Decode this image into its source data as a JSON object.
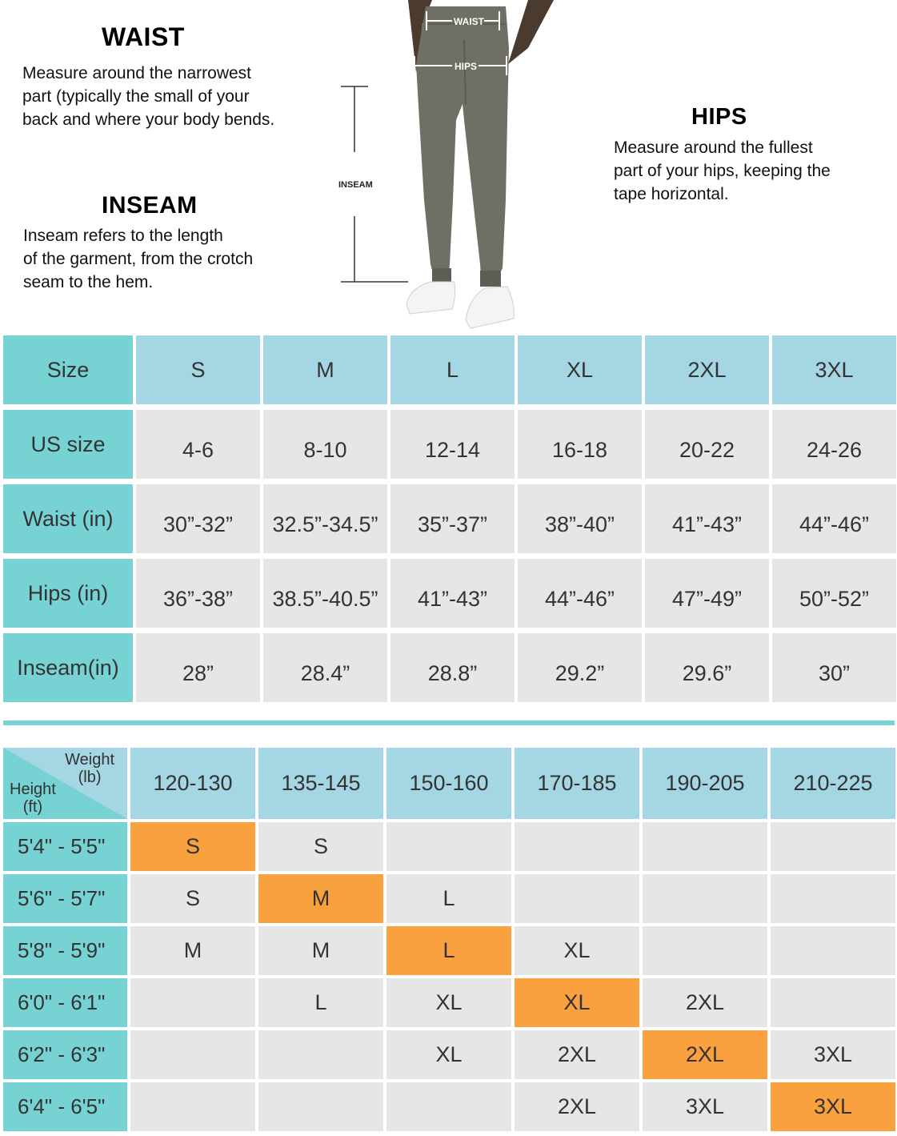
{
  "guide": {
    "waist": {
      "title": "WAIST",
      "lines": [
        "Measure around the narrowest",
        "part (typically the small of your",
        "back and where your body bends."
      ]
    },
    "inseam": {
      "title": "INSEAM",
      "lines": [
        "Inseam refers to the length",
        "of the garment, from the crotch",
        "seam to the hem."
      ]
    },
    "hips": {
      "title": "HIPS",
      "lines": [
        "Measure around the fullest",
        "part of your hips, keeping the",
        "tape horizontal."
      ]
    },
    "figure_labels": {
      "waist": "WAIST",
      "hips": "HIPS",
      "inseam": "INSEAM"
    }
  },
  "size_table": {
    "headers": [
      "Size",
      "S",
      "M",
      "L",
      "XL",
      "2XL",
      "3XL"
    ],
    "rows": [
      {
        "label": "US size",
        "values": [
          "4-6",
          "8-10",
          "12-14",
          "16-18",
          "20-22",
          "24-26"
        ]
      },
      {
        "label": "Waist (in)",
        "values": [
          "30”-32”",
          "32.5”-34.5”",
          "35”-37”",
          "38”-40”",
          "41”-43”",
          "44”-46”"
        ]
      },
      {
        "label": "Hips (in)",
        "values": [
          "36”-38”",
          "38.5”-40.5”",
          "41”-43”",
          "44”-46”",
          "47”-49”",
          "50”-52”"
        ]
      },
      {
        "label": "Inseam(in)",
        "values": [
          "28”",
          "28.4”",
          "28.8”",
          "29.2”",
          "29.6”",
          "30”"
        ]
      }
    ]
  },
  "fit_table": {
    "corner": {
      "weight": [
        "Weight",
        "(lb)"
      ],
      "height": [
        "Height",
        "(ft)"
      ]
    },
    "weights": [
      "120-130",
      "135-145",
      "150-160",
      "170-185",
      "190-205",
      "210-225"
    ],
    "rows": [
      {
        "height": "5'4\" - 5'5\"",
        "values": [
          "S",
          "S",
          "",
          "",
          "",
          ""
        ],
        "best": 0
      },
      {
        "height": "5'6\" - 5'7\"",
        "values": [
          "S",
          "M",
          "L",
          "",
          "",
          ""
        ],
        "best": 1
      },
      {
        "height": "5'8\" - 5'9\"",
        "values": [
          "M",
          "M",
          "L",
          "XL",
          "",
          ""
        ],
        "best": 2
      },
      {
        "height": "6'0\" - 6'1\"",
        "values": [
          "",
          "L",
          "XL",
          "XL",
          "2XL",
          ""
        ],
        "best": 3
      },
      {
        "height": "6'2\" - 6'3\"",
        "values": [
          "",
          "",
          "XL",
          "2XL",
          "2XL",
          "3XL"
        ],
        "best": 4
      },
      {
        "height": "6'4\" - 6'5\"",
        "values": [
          "",
          "",
          "",
          "2XL",
          "3XL",
          "3XL"
        ],
        "best": 5
      }
    ]
  },
  "colors": {
    "teal": "#77d2d4",
    "blue": "#a4d6e3",
    "gray": "#e6e6e6",
    "highlight": "#f9a13f",
    "pants": "#6f6f66"
  }
}
